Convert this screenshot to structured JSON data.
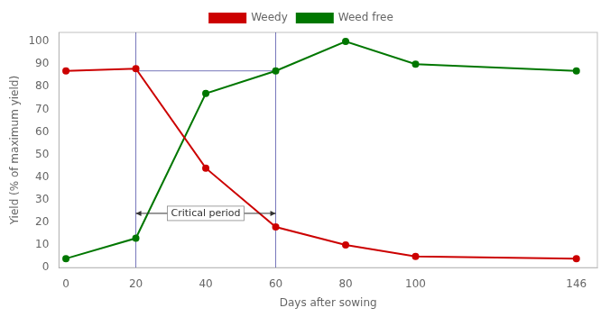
{
  "chart_data": {
    "type": "line",
    "x_label": "Days after sowing",
    "y_label": "Yield (% of maximum yield)",
    "series": [
      {
        "name": "Weedy",
        "color": "#cc0000",
        "marker": "circle",
        "x": [
          0,
          20,
          40,
          60,
          80,
          100,
          146
        ],
        "values": [
          87,
          88,
          44,
          18,
          10,
          5,
          4
        ]
      },
      {
        "name": "Weed free",
        "color": "#007700",
        "marker": "circle",
        "x": [
          0,
          20,
          40,
          60,
          80,
          100,
          146
        ],
        "values": [
          4,
          13,
          77,
          87,
          100,
          90,
          87
        ]
      }
    ],
    "xlim": [
      -2,
      152
    ],
    "xticks": [
      0,
      20,
      40,
      60,
      80,
      100,
      146
    ],
    "ylim": [
      0,
      104
    ],
    "yticks": [
      0,
      10,
      20,
      30,
      40,
      50,
      60,
      70,
      80,
      90,
      100
    ],
    "grid": false,
    "legend": "top",
    "annotations": [
      {
        "type": "vline",
        "x": 20,
        "color": "#7777bb"
      },
      {
        "type": "vline",
        "x": 60,
        "color": "#7777bb"
      },
      {
        "type": "hline",
        "y": 87,
        "x": [
          20,
          60
        ],
        "color": "#7777bb"
      },
      {
        "type": "arrow",
        "x": [
          20,
          60
        ],
        "y": 24,
        "text": "Critical period"
      }
    ]
  }
}
